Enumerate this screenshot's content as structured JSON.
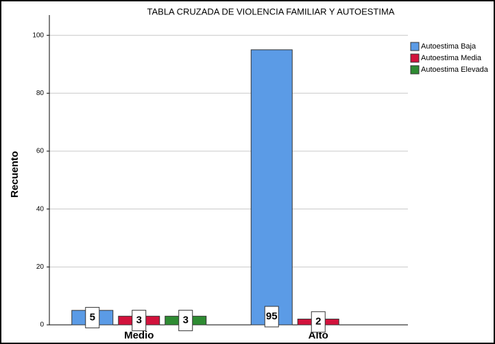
{
  "chart_data": {
    "type": "bar",
    "title": "TABLA CRUZADA DE VIOLENCIA FAMILIAR Y AUTOESTIMA",
    "y_label": "Recuento",
    "categories": [
      "Medio",
      "Alto"
    ],
    "series": [
      {
        "name": "Autoestima Baja",
        "color": "#5b9be6",
        "values": [
          5,
          95
        ]
      },
      {
        "name": "Autoestima Media",
        "color": "#d2123c",
        "values": [
          3,
          2
        ]
      },
      {
        "name": "Autoestima Elevada",
        "color": "#2e8b32",
        "values": [
          3,
          null
        ]
      }
    ],
    "ylim": [
      0,
      107
    ],
    "yticks": [
      0,
      20,
      40,
      60,
      80,
      100
    ],
    "grid": true,
    "legend": "right"
  }
}
